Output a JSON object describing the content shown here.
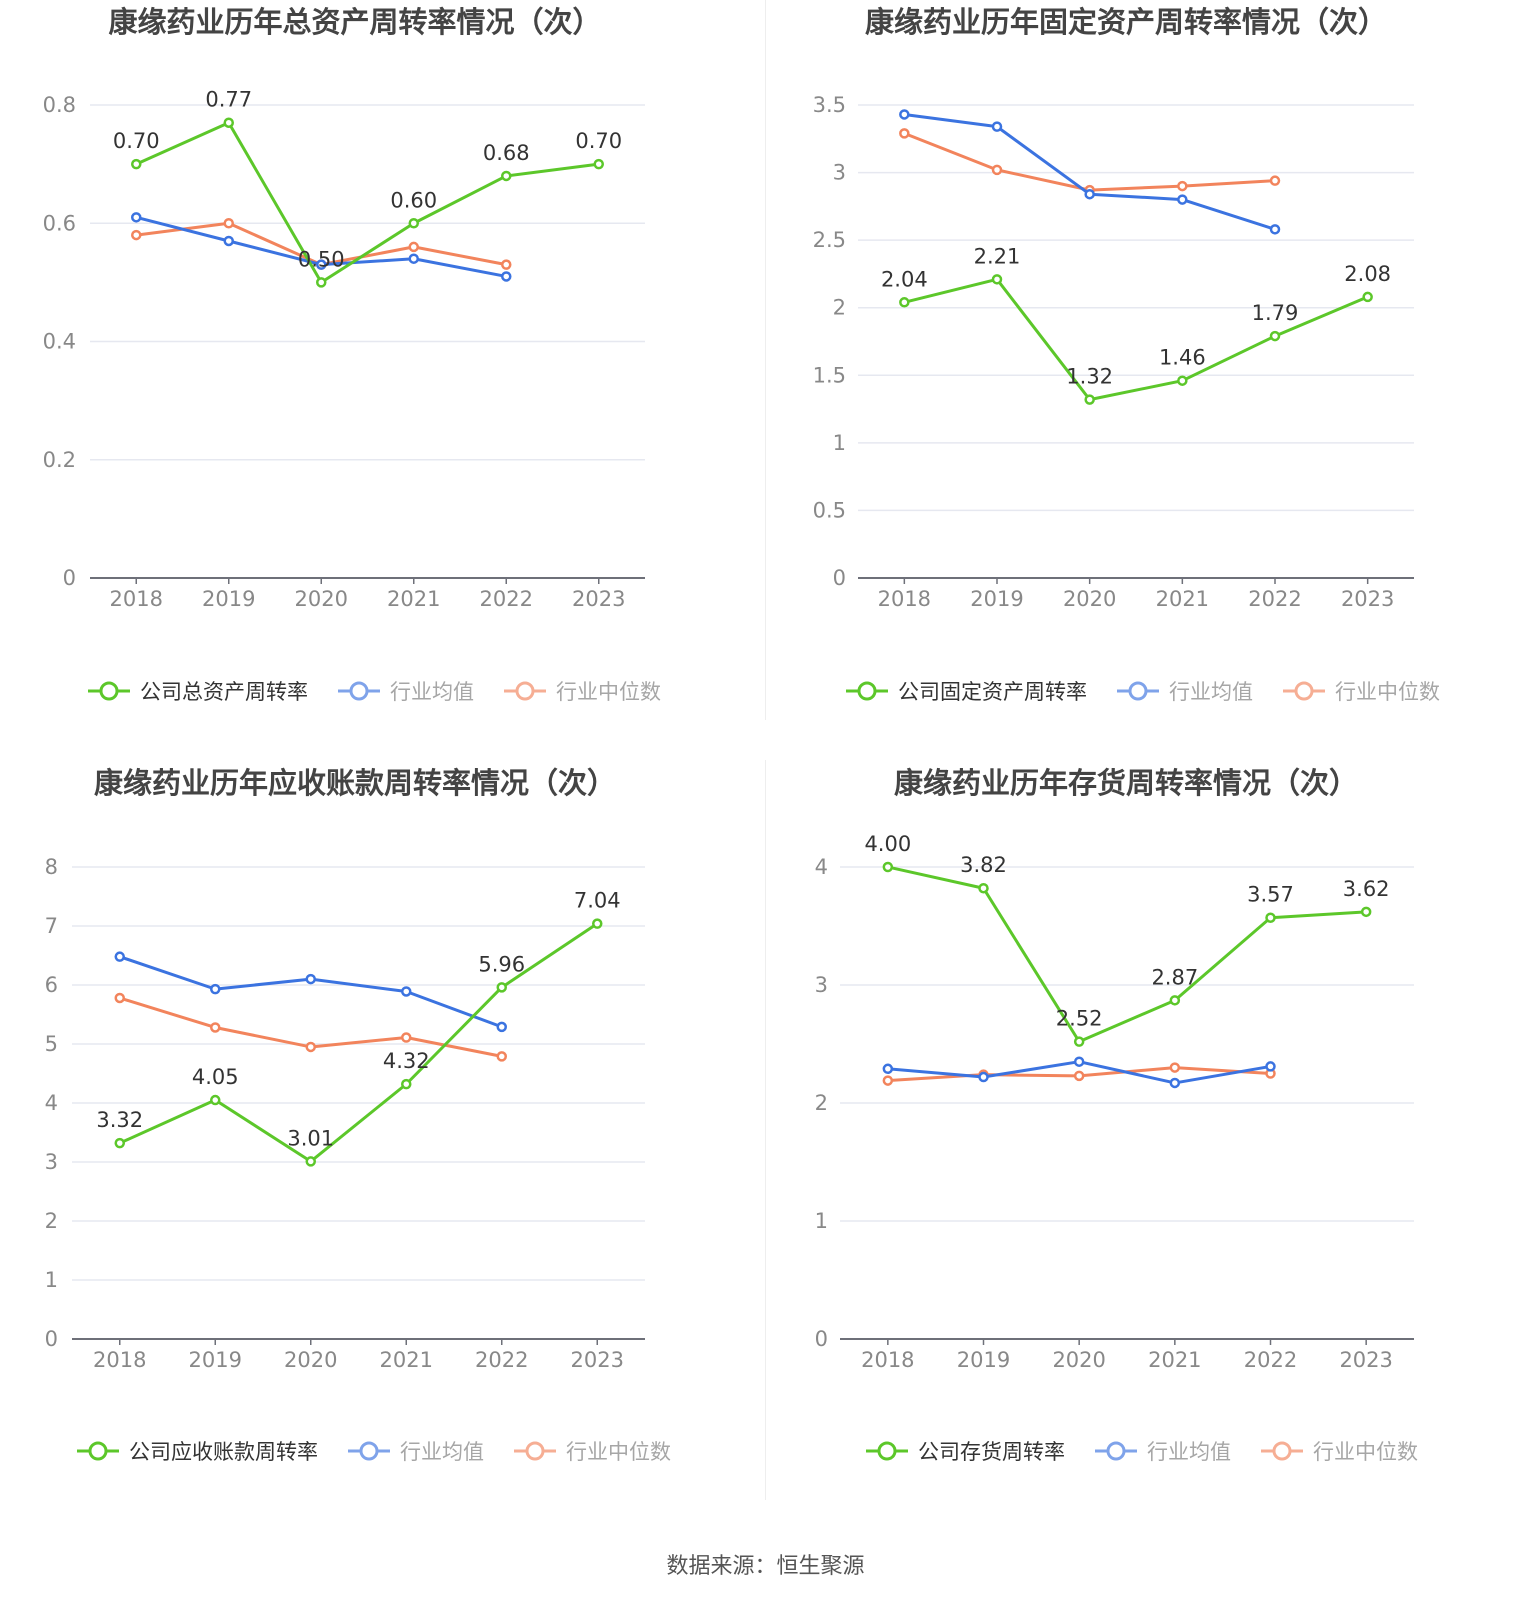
{
  "source": "数据来源：恒生聚源",
  "colors": {
    "company": "#5cc72a",
    "avg": "#3b73e0",
    "median": "#f2845c",
    "axis": "#888888",
    "grid": "#e6e8f0",
    "label": "#333333",
    "title": "#444444"
  },
  "chart_data": [
    {
      "type": "line",
      "title": "康缘药业历年总资产周转率情况（次）",
      "categories": [
        "2018",
        "2019",
        "2020",
        "2021",
        "2022",
        "2023"
      ],
      "yticks": [
        "0",
        "0.2",
        "0.4",
        "0.6",
        "0.8"
      ],
      "ylim": [
        0,
        0.8
      ],
      "series": [
        {
          "name": "公司总资产周转率",
          "role": "company",
          "values": [
            0.7,
            0.77,
            0.5,
            0.6,
            0.68,
            0.7
          ],
          "labels": [
            "0.70",
            "0.77",
            "0.50",
            "0.60",
            "0.68",
            "0.70"
          ]
        },
        {
          "name": "行业均值",
          "role": "avg",
          "values": [
            0.61,
            0.57,
            0.53,
            0.54,
            0.51,
            null
          ]
        },
        {
          "name": "行业中位数",
          "role": "median",
          "values": [
            0.58,
            0.6,
            0.53,
            0.56,
            0.53,
            null
          ]
        }
      ]
    },
    {
      "type": "line",
      "title": "康缘药业历年固定资产周转率情况（次）",
      "categories": [
        "2018",
        "2019",
        "2020",
        "2021",
        "2022",
        "2023"
      ],
      "yticks": [
        "0",
        "0.5",
        "1",
        "1.5",
        "2",
        "2.5",
        "3",
        "3.5"
      ],
      "ylim": [
        0,
        3.5
      ],
      "series": [
        {
          "name": "公司固定资产周转率",
          "role": "company",
          "values": [
            2.04,
            2.21,
            1.32,
            1.46,
            1.79,
            2.08
          ],
          "labels": [
            "2.04",
            "2.21",
            "1.32",
            "1.46",
            "1.79",
            "2.08"
          ]
        },
        {
          "name": "行业均值",
          "role": "avg",
          "values": [
            3.43,
            3.34,
            2.84,
            2.8,
            2.58,
            null
          ]
        },
        {
          "name": "行业中位数",
          "role": "median",
          "values": [
            3.29,
            3.02,
            2.87,
            2.9,
            2.94,
            null
          ]
        }
      ]
    },
    {
      "type": "line",
      "title": "康缘药业历年应收账款周转率情况（次）",
      "categories": [
        "2018",
        "2019",
        "2020",
        "2021",
        "2022",
        "2023"
      ],
      "yticks": [
        "0",
        "1",
        "2",
        "3",
        "4",
        "5",
        "6",
        "7",
        "8"
      ],
      "ylim": [
        0,
        8
      ],
      "series": [
        {
          "name": "公司应收账款周转率",
          "role": "company",
          "values": [
            3.32,
            4.05,
            3.01,
            4.32,
            5.96,
            7.04
          ],
          "labels": [
            "3.32",
            "4.05",
            "3.01",
            "4.32",
            "5.96",
            "7.04"
          ]
        },
        {
          "name": "行业均值",
          "role": "avg",
          "values": [
            6.48,
            5.93,
            6.1,
            5.89,
            5.29,
            null
          ]
        },
        {
          "name": "行业中位数",
          "role": "median",
          "values": [
            5.78,
            5.28,
            4.95,
            5.11,
            4.79,
            null
          ]
        }
      ]
    },
    {
      "type": "line",
      "title": "康缘药业历年存货周转率情况（次）",
      "categories": [
        "2018",
        "2019",
        "2020",
        "2021",
        "2022",
        "2023"
      ],
      "yticks": [
        "0",
        "1",
        "2",
        "3",
        "4"
      ],
      "ylim": [
        0,
        4
      ],
      "series": [
        {
          "name": "公司存货周转率",
          "role": "company",
          "values": [
            4.0,
            3.82,
            2.52,
            2.87,
            3.57,
            3.62
          ],
          "labels": [
            "4.00",
            "3.82",
            "2.52",
            "2.87",
            "3.57",
            "3.62"
          ]
        },
        {
          "name": "行业均值",
          "role": "avg",
          "values": [
            2.29,
            2.22,
            2.35,
            2.17,
            2.31,
            null
          ]
        },
        {
          "name": "行业中位数",
          "role": "median",
          "values": [
            2.19,
            2.24,
            2.23,
            2.3,
            2.25,
            null
          ]
        }
      ]
    }
  ]
}
